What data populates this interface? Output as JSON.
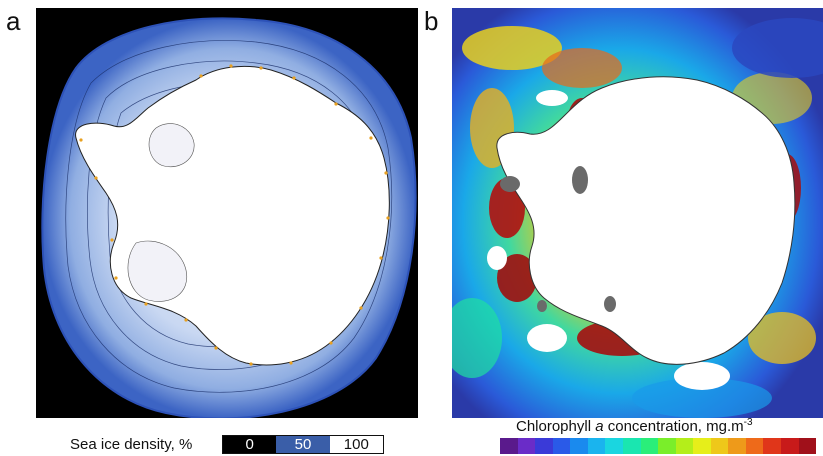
{
  "panels": {
    "a": {
      "letter": "a",
      "legend": {
        "label": "Sea ice density, %",
        "ticks": [
          "0",
          "50",
          "100"
        ],
        "colors": [
          "#000000",
          "#3a5ea8",
          "#ffffff"
        ]
      }
    },
    "b": {
      "letter": "b",
      "legend": {
        "label_prefix": "Chlorophyll ",
        "label_italic": "a",
        "label_suffix": " concentration, mg.m",
        "label_exponent": "-3",
        "colors": [
          "#5a1a8c",
          "#6a2cc8",
          "#3a3ad8",
          "#2a5ae8",
          "#1a8aee",
          "#1ab4ee",
          "#1ad6e0",
          "#1ae6b0",
          "#2aee7a",
          "#7aee2a",
          "#b4ee1a",
          "#e6ee1a",
          "#eec81a",
          "#ee9a1a",
          "#ee6a1a",
          "#e0361a",
          "#c81a1a",
          "#a0101a"
        ]
      }
    }
  }
}
